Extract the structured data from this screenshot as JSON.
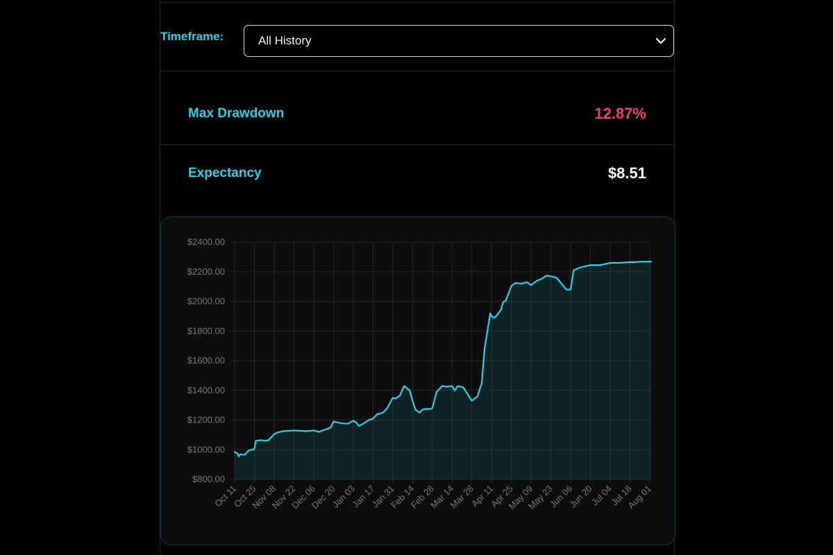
{
  "timeframe": {
    "label": "Timeframe:",
    "selected": "All History"
  },
  "stats": {
    "max_drawdown": {
      "label": "Max Drawdown",
      "value": "12.87%"
    },
    "expectancy": {
      "label": "Expectancy",
      "value": "$8.51"
    }
  },
  "colors": {
    "accent": "#22d3ee",
    "negative": "#f43f5e",
    "value_text": "#ffffff"
  },
  "icons": {
    "timeframe_dropdown": "chevron-down-icon"
  },
  "chart_data": {
    "type": "area",
    "title": "",
    "xlabel": "",
    "ylabel": "",
    "grid": true,
    "ylim": [
      800,
      2400
    ],
    "y_ticks": [
      800,
      1000,
      1200,
      1400,
      1600,
      1800,
      2000,
      2200,
      2400
    ],
    "y_tick_labels": [
      "$800.00",
      "$1000.00",
      "$1200.00",
      "$1400.00",
      "$1600.00",
      "$1800.00",
      "$2000.00",
      "$2200.00",
      "$2400.00"
    ],
    "x_tick_labels": [
      "Oct 11",
      "Oct 25",
      "Nov 08",
      "Nov 22",
      "Dec 06",
      "Dec 20",
      "Jan 03",
      "Jan 17",
      "Jan 31",
      "Feb 14",
      "Feb 28",
      "Mar 14",
      "Mar 28",
      "Apr 11",
      "Apr 25",
      "May 09",
      "May 23",
      "Jun 06",
      "Jun 20",
      "Jul 04",
      "Jul 18",
      "Aug 01"
    ],
    "x_start": "Oct 11",
    "x_end": "Aug 01",
    "series": [
      {
        "x": [
          "Oct 11",
          "Oct 13",
          "Oct 14",
          "Oct 15",
          "Oct 18",
          "Oct 21",
          "Oct 25",
          "Oct 26",
          "Oct 30",
          "Nov 01",
          "Nov 04",
          "Nov 08",
          "Nov 10",
          "Nov 14",
          "Nov 22",
          "Dec 01",
          "Dec 06",
          "Dec 10",
          "Dec 12",
          "Dec 14",
          "Dec 18",
          "Dec 20",
          "Dec 25",
          "Dec 30",
          "Jan 03",
          "Jan 05",
          "Jan 07",
          "Jan 10",
          "Jan 14",
          "Jan 17",
          "Jan 20",
          "Jan 24",
          "Jan 27",
          "Jan 31",
          "Feb 02",
          "Feb 05",
          "Feb 08",
          "Feb 10",
          "Feb 12",
          "Feb 14",
          "Feb 16",
          "Feb 19",
          "Feb 21",
          "Feb 23",
          "Feb 26",
          "Feb 28",
          "Mar 03",
          "Mar 07",
          "Mar 10",
          "Mar 14",
          "Mar 16",
          "Mar 18",
          "Mar 22",
          "Mar 28",
          "Apr 01",
          "Apr 04",
          "Apr 06",
          "Apr 08",
          "Apr 10",
          "Apr 11",
          "Apr 13",
          "Apr 15",
          "Apr 18",
          "Apr 19",
          "Apr 21",
          "Apr 25",
          "Apr 28",
          "May 02",
          "May 06",
          "May 09",
          "May 13",
          "May 16",
          "May 20",
          "May 23",
          "May 27",
          "Jun 03",
          "Jun 06",
          "Jun 08",
          "Jun 13",
          "Jun 20",
          "Jun 27",
          "Jul 04",
          "Jul 11",
          "Jul 13",
          "Jul 18",
          "Jul 20",
          "Jul 25",
          "Aug 01",
          "Aug 03"
        ],
        "y": [
          985,
          975,
          955,
          970,
          965,
          995,
          1005,
          1060,
          1065,
          1060,
          1065,
          1105,
          1115,
          1125,
          1130,
          1125,
          1130,
          1120,
          1130,
          1135,
          1150,
          1190,
          1180,
          1175,
          1195,
          1185,
          1160,
          1175,
          1200,
          1210,
          1240,
          1250,
          1280,
          1350,
          1345,
          1365,
          1430,
          1415,
          1400,
          1330,
          1270,
          1250,
          1270,
          1275,
          1275,
          1280,
          1390,
          1430,
          1425,
          1430,
          1400,
          1430,
          1420,
          1330,
          1360,
          1450,
          1680,
          1800,
          1920,
          1900,
          1890,
          1910,
          1950,
          1995,
          2005,
          2105,
          2125,
          2120,
          2130,
          2110,
          2140,
          2150,
          2175,
          2170,
          2160,
          2080,
          2080,
          2210,
          2230,
          2245,
          2245,
          2260,
          2260,
          2262,
          2265,
          2265,
          2268,
          2268,
          2268
        ]
      }
    ]
  }
}
